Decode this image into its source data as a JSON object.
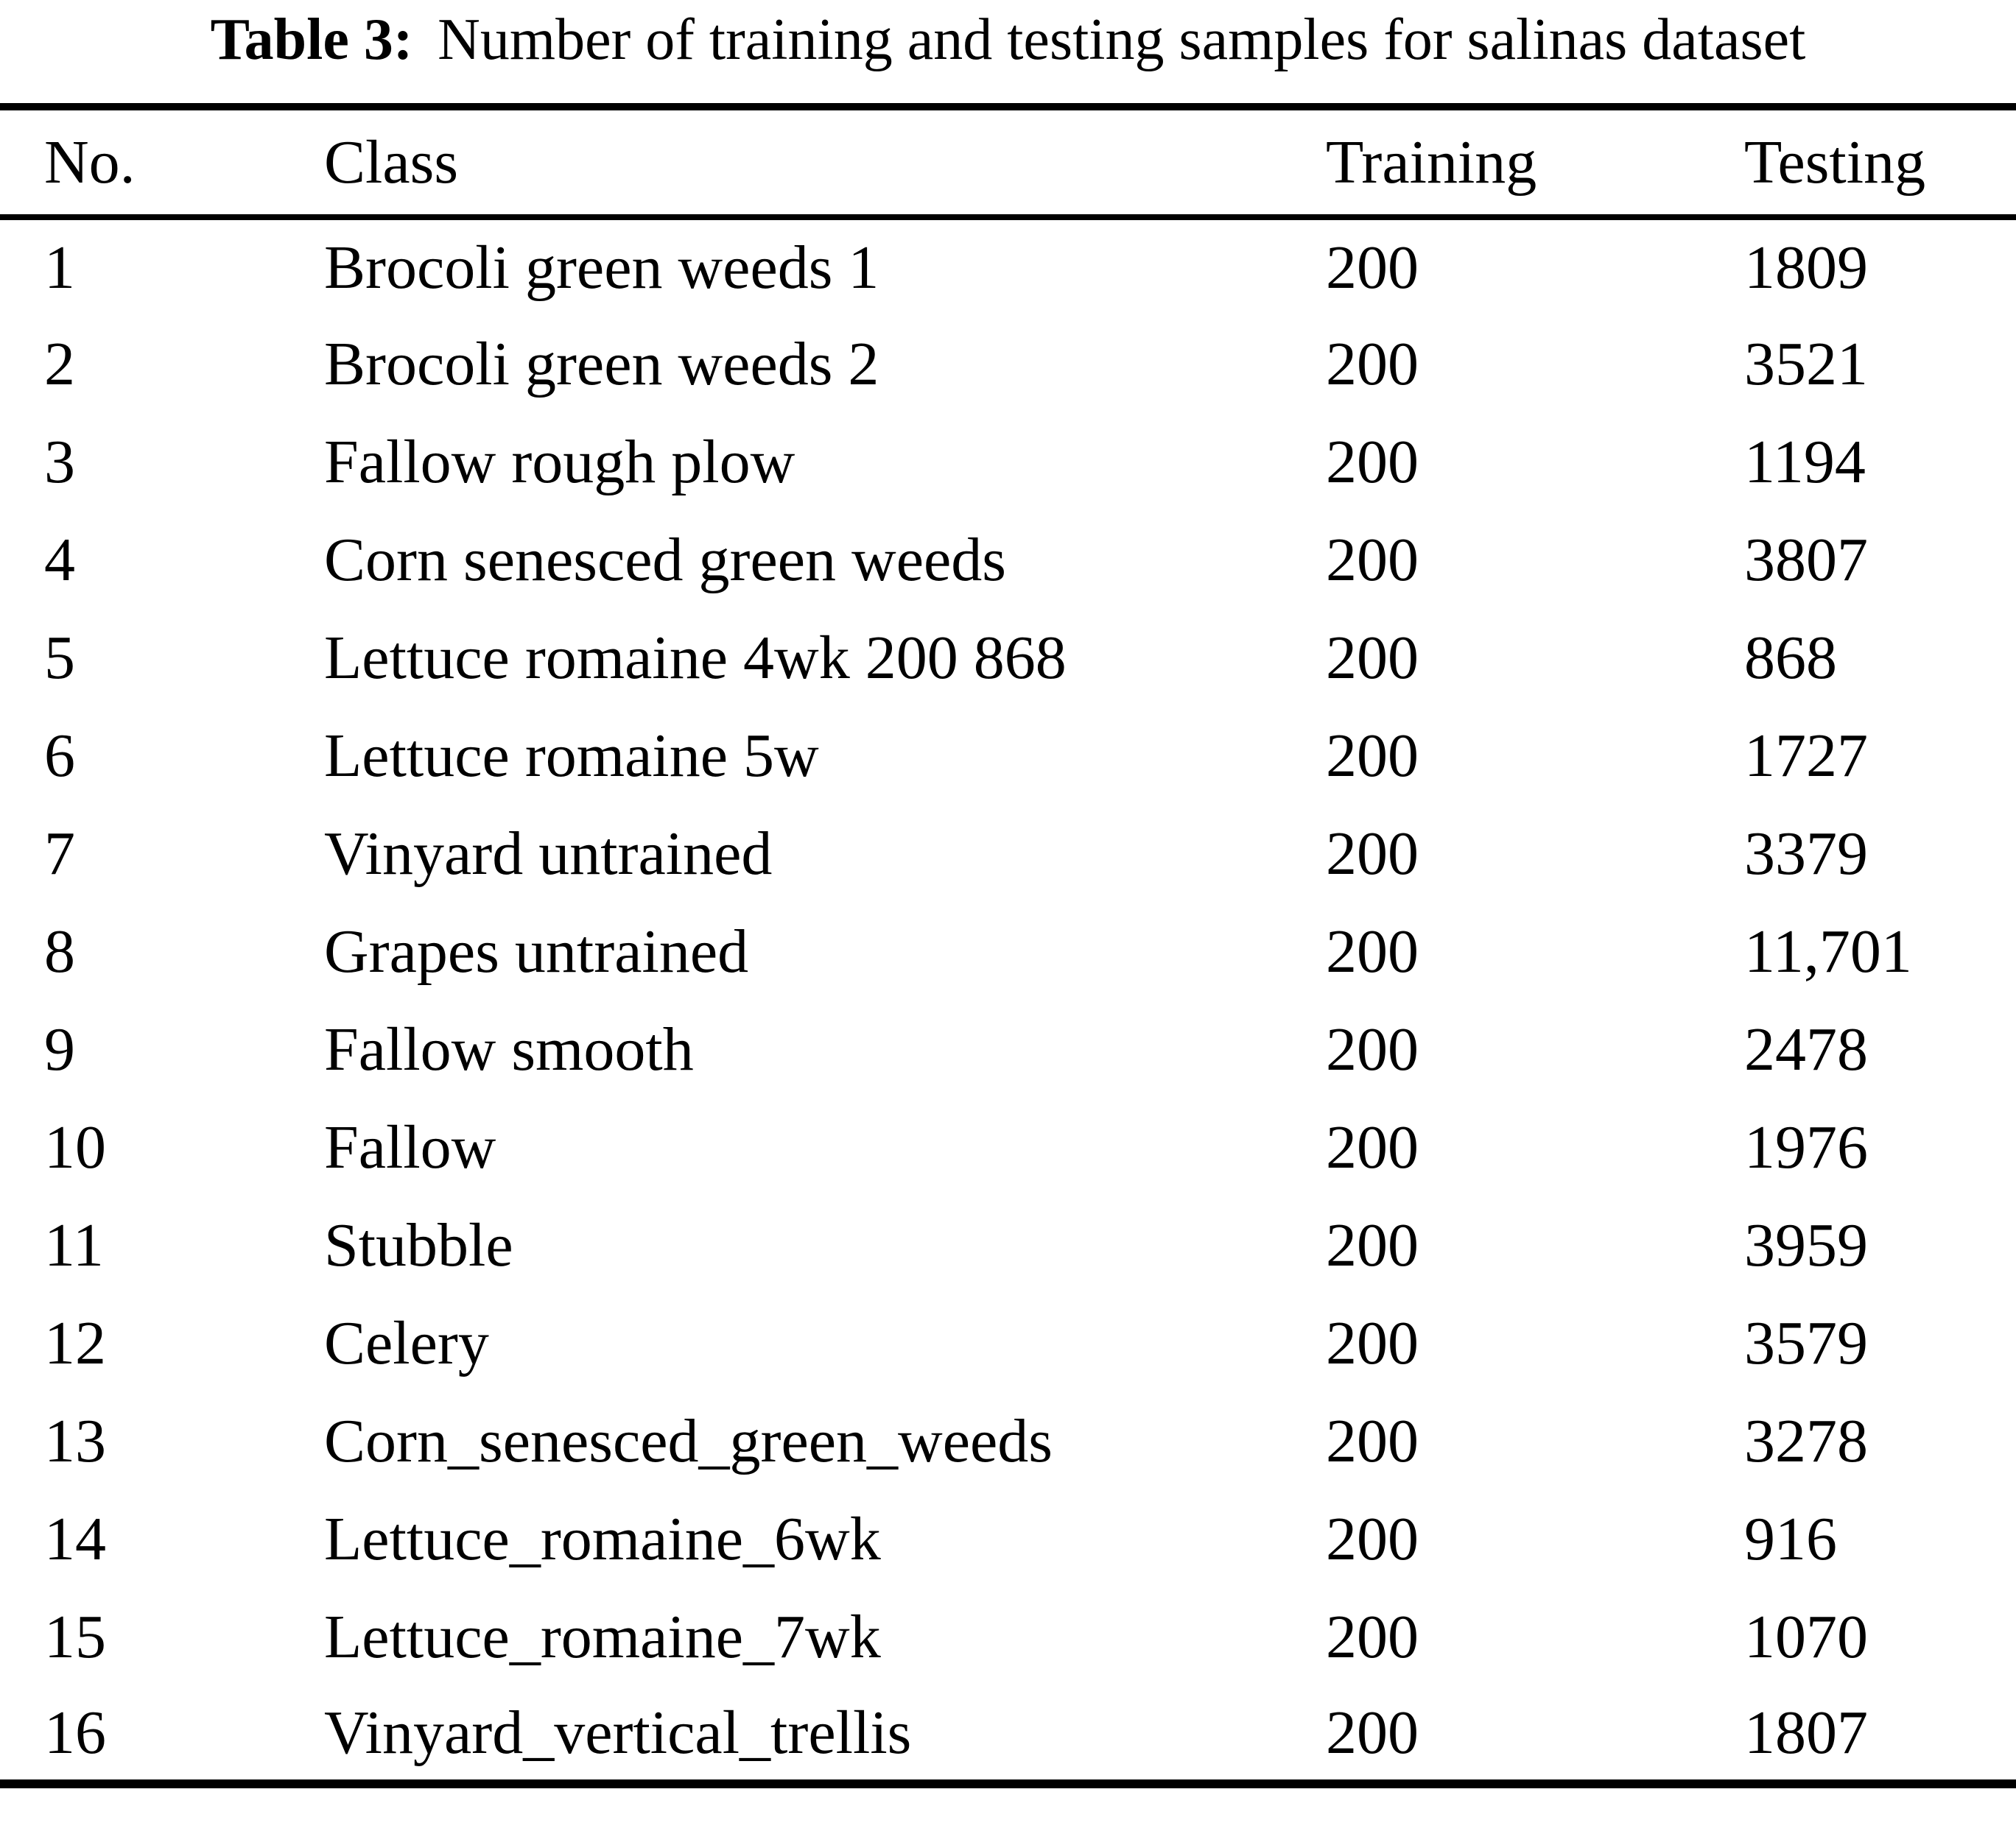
{
  "page": {
    "caption": {
      "label": "Table 3:",
      "text": "Number of training and testing samples for salinas dataset"
    },
    "table": {
      "columns": [
        "No.",
        "Class",
        "Training",
        "Testing"
      ],
      "rows": [
        {
          "no": "1",
          "class": "Brocoli green weeds 1",
          "training": "200",
          "testing": "1809"
        },
        {
          "no": "2",
          "class": "Brocoli green weeds 2",
          "training": "200",
          "testing": "3521"
        },
        {
          "no": "3",
          "class": "Fallow rough plow",
          "training": "200",
          "testing": "1194"
        },
        {
          "no": "4",
          "class": "Corn senesced green weeds",
          "training": "200",
          "testing": "3807"
        },
        {
          "no": "5",
          "class": "Lettuce romaine 4wk 200 868",
          "training": "200",
          "testing": "868"
        },
        {
          "no": "6",
          "class": "Lettuce romaine 5w",
          "training": "200",
          "testing": "1727"
        },
        {
          "no": "7",
          "class": "Vinyard untrained",
          "training": "200",
          "testing": "3379"
        },
        {
          "no": "8",
          "class": "Grapes untrained",
          "training": "200",
          "testing": "11,701"
        },
        {
          "no": "9",
          "class": "Fallow smooth",
          "training": "200",
          "testing": "2478"
        },
        {
          "no": "10",
          "class": "Fallow",
          "training": "200",
          "testing": "1976"
        },
        {
          "no": "11",
          "class": "Stubble",
          "training": "200",
          "testing": "3959"
        },
        {
          "no": "12",
          "class": "Celery",
          "training": "200",
          "testing": "3579"
        },
        {
          "no": "13",
          "class": "Corn_senesced_green_weeds",
          "training": "200",
          "testing": "3278"
        },
        {
          "no": "14",
          "class": "Lettuce_romaine_6wk",
          "training": "200",
          "testing": "916"
        },
        {
          "no": "15",
          "class": "Lettuce_romaine_7wk",
          "training": "200",
          "testing": "1070"
        },
        {
          "no": "16",
          "class": "Vinyard_vertical_trellis",
          "training": "200",
          "testing": "1807"
        }
      ]
    }
  }
}
